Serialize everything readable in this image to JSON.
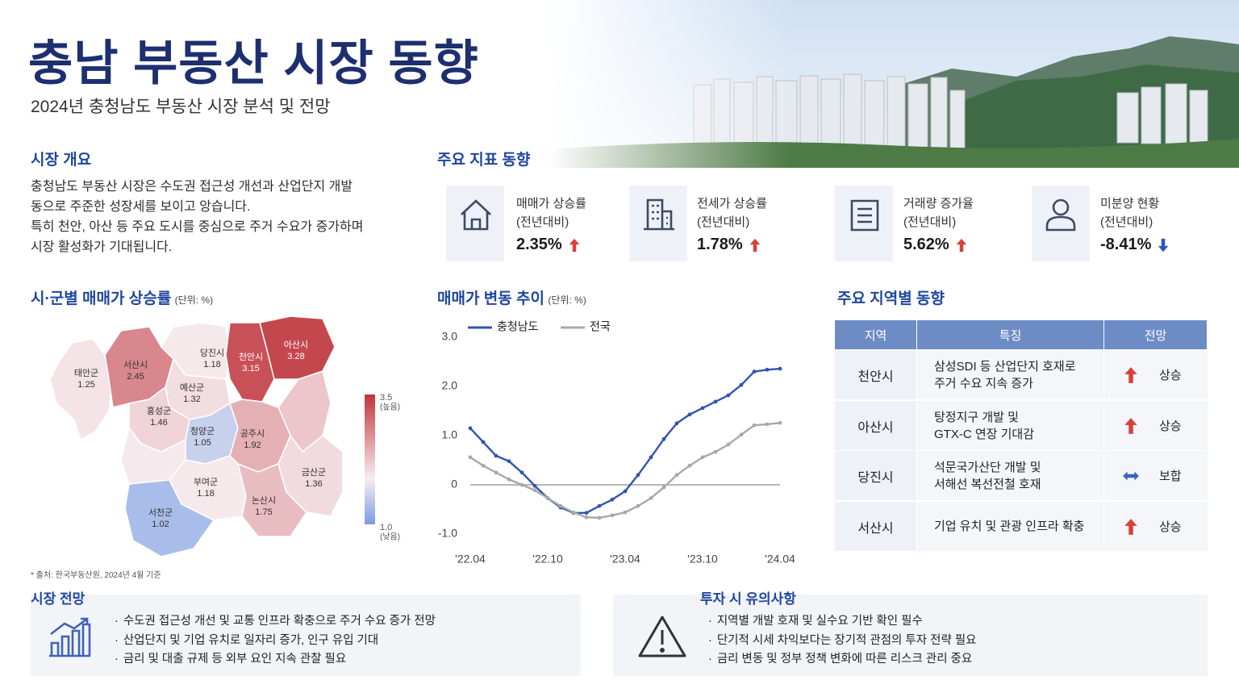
{
  "header": {
    "title": "충남 부동산 시장 동향",
    "subtitle": "2024년 충청남도 부동산 시장 분석 및 전망"
  },
  "overview": {
    "heading": "시장 개요",
    "lines": [
      "충청남도 부동산 시장은 수도권 접근성 개선과 산업단지 개발",
      "동으로 주준한 성장세를 보이고 앙습니다.",
      "특히 천안, 아산 등 주요 도시를 중심으로 주거 수요가 증가하며",
      "시장 활성화가 기대됩니다."
    ]
  },
  "indicators": {
    "heading": "주요 지표 동향",
    "items": [
      {
        "label": "매매가 상승률",
        "sub": "(전년대비)",
        "value": "2.35%",
        "trend": "up"
      },
      {
        "label": "전세가 상승률",
        "sub": "(전년대비)",
        "value": "1.78%",
        "trend": "up"
      },
      {
        "label": "거래량 증가율",
        "sub": "(전년대비)",
        "value": "5.62%",
        "trend": "up"
      },
      {
        "label": "미분양 현황",
        "sub": "(전년대비)",
        "value": "-8.41%",
        "trend": "down"
      }
    ]
  },
  "map": {
    "heading": "시·군별 매매가 상승률",
    "unit": "(단위: %)",
    "regions": [
      {
        "name": "태안군",
        "value": 1.25
      },
      {
        "name": "서산시",
        "value": 2.45
      },
      {
        "name": "당진시",
        "value": 1.18
      },
      {
        "name": "천안시",
        "value": 3.15
      },
      {
        "name": "아산시",
        "value": 3.28
      },
      {
        "name": "예산군",
        "value": 1.32
      },
      {
        "name": "홍성군",
        "value": 1.46
      },
      {
        "name": "청양군",
        "value": 1.05
      },
      {
        "name": "공주시",
        "value": 1.92
      },
      {
        "name": "부여군",
        "value": 1.18
      },
      {
        "name": "서천군",
        "value": 1.02
      },
      {
        "name": "논산시",
        "value": 1.75
      },
      {
        "name": "금산군",
        "value": 1.36
      }
    ],
    "scale_lim": [
      1,
      3.5
    ],
    "scale_ticks": [
      3.5,
      {
        "value": 1,
        "label": "1.0"
      }
    ],
    "scale_notes": [
      "(높음)",
      "(낮음)"
    ],
    "source": "* 출처: 한국부동산원, 2024년 4월 기준"
  },
  "chart_data": {
    "type": "line",
    "title": "매매가 변동 추이",
    "subtitle": "(단위: %)",
    "categories": [
      "'22.04",
      null,
      null,
      null,
      null,
      null,
      "'22.10",
      null,
      null,
      null,
      null,
      null,
      "'23.04",
      null,
      null,
      null,
      null,
      null,
      "'23.10",
      null,
      null,
      null,
      null,
      null,
      "'24.04"
    ],
    "series": [
      {
        "name": "충청남도",
        "color": "#2f55b0",
        "values": [
          1.15,
          0.87,
          0.59,
          0.48,
          0.25,
          -0.02,
          -0.27,
          -0.46,
          -0.57,
          -0.57,
          -0.43,
          -0.3,
          -0.13,
          0.2,
          0.56,
          0.93,
          1.25,
          1.43,
          1.56,
          1.69,
          1.82,
          2.03,
          2.3,
          2.34,
          2.36
        ]
      },
      {
        "name": "전국",
        "color": "#a8a8a8",
        "values": [
          0.56,
          0.39,
          0.25,
          0.11,
          0,
          -0.11,
          -0.27,
          -0.43,
          -0.56,
          -0.66,
          -0.67,
          -0.62,
          -0.56,
          -0.43,
          -0.27,
          -0.05,
          0.2,
          0.39,
          0.56,
          0.67,
          0.82,
          1.02,
          1.21,
          1.23,
          1.26
        ]
      }
    ],
    "ylim": [
      -1,
      3
    ],
    "yticks": [
      {
        "value": 3,
        "label": "3.0"
      },
      {
        "value": 2,
        "label": "2.0"
      },
      {
        "value": 1,
        "label": "1.0"
      },
      0,
      {
        "value": -1,
        "label": "-1.0"
      }
    ],
    "grid": false
  },
  "regional": {
    "heading": "주요 지역별 동향",
    "columns": [
      "지역",
      "특징",
      "전망"
    ],
    "rows": [
      {
        "region": "천안시",
        "feature": [
          "삼성SDI 등 산업단지 호재로",
          "주거 수요 지속 증가"
        ],
        "outlook": "상승",
        "trend": "up"
      },
      {
        "region": "아산시",
        "feature": [
          "탕정지구 개발 및",
          "GTX-C 연장 기대감"
        ],
        "outlook": "상승",
        "trend": "up"
      },
      {
        "region": "당진시",
        "feature": [
          "석문국가산단 개발 및",
          "서해선 복선전철 호재"
        ],
        "outlook": "보합",
        "trend": "flat"
      },
      {
        "region": "서산시",
        "feature": [
          "기업 유치 및 관광 인프라 확충"
        ],
        "outlook": "상승",
        "trend": "up"
      }
    ]
  },
  "outlook": {
    "heading": "시장 전망",
    "bullets": [
      "수도권 접근성 개선 및 교통 인프라 확충으로 주거 수요 증가 전망",
      "산업단지 및 기업 유치로 일자리 증가, 인구 유입 기대",
      "금리 및 대출 규제 등 외부 요인 지속 관찰 필요"
    ]
  },
  "caution": {
    "heading": "투자 시 유의사항",
    "bullets": [
      "지역별 개발 호재 및 실수요 기반 확인 필수",
      "단기적 시세 차익보다는 장기적 관점의 투자 전략 필요",
      "금리 변동 및 정부 정책 변화에 따른 리스크 관리 중요"
    ]
  }
}
